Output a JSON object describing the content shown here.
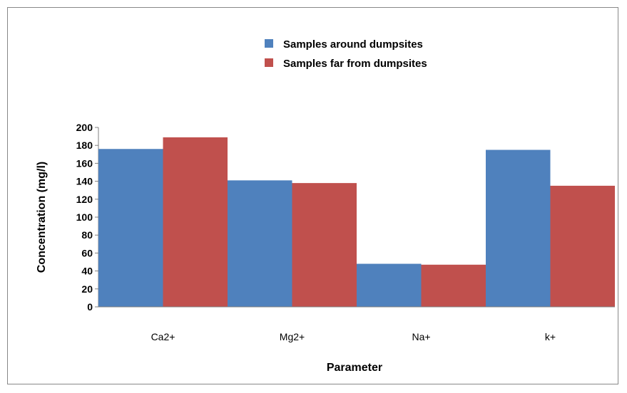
{
  "chart_data": {
    "type": "bar",
    "categories": [
      "Ca2+",
      "Mg2+",
      "Na+",
      "k+"
    ],
    "series": [
      {
        "name": "Samples around dumpsites",
        "color": "#4F81BD",
        "values": [
          176,
          141,
          48,
          175
        ]
      },
      {
        "name": "Samples far from dumpsites",
        "color": "#C0504D",
        "values": [
          189,
          138,
          47,
          135
        ]
      }
    ],
    "xlabel": "Parameter",
    "ylabel": "Concentration (mg/l)",
    "ylim": [
      0,
      200
    ],
    "yticks": [
      0,
      20,
      40,
      60,
      80,
      100,
      120,
      140,
      160,
      180,
      200
    ],
    "grid": false,
    "legend_position": "top-center"
  }
}
